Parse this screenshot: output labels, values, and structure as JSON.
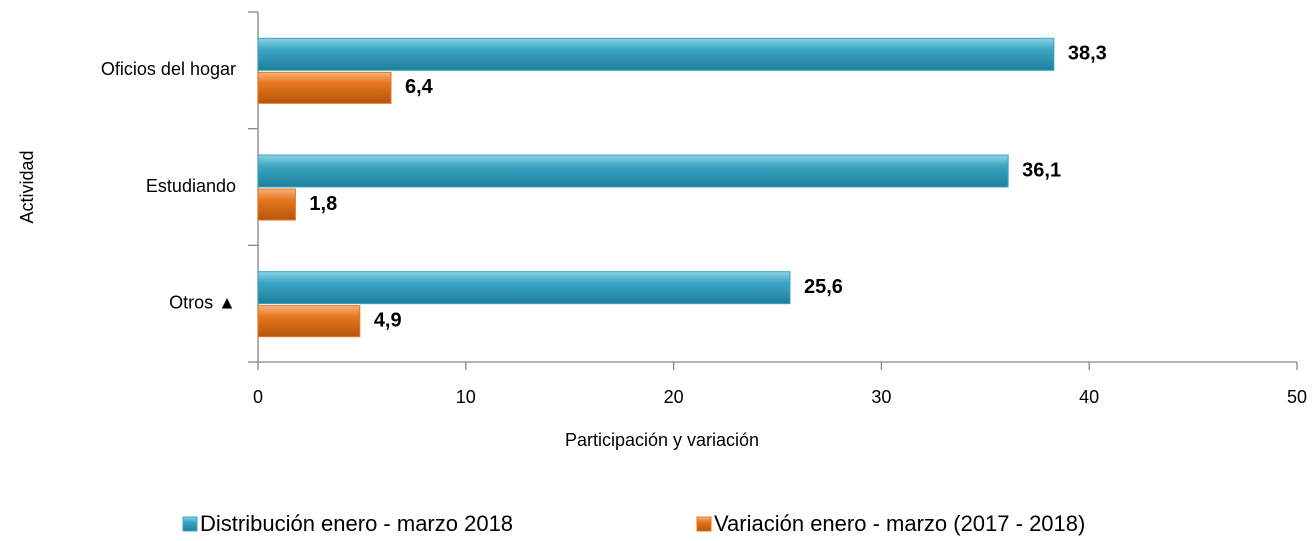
{
  "chart_data": {
    "type": "bar",
    "orientation": "horizontal",
    "x_label": "Participación y variación",
    "y_label": "Actividad",
    "categories": [
      "Oficios del hogar",
      "Estudiando",
      "Otros ▲"
    ],
    "series": [
      {
        "name": "Distribución enero - marzo 2018",
        "color": "#3aa5c3",
        "label_color": "#243f60",
        "values": [
          38.3,
          36.1,
          25.6
        ],
        "value_labels": [
          "38,3",
          "36,1",
          "25,6"
        ]
      },
      {
        "name": "Variación enero - marzo (2017 - 2018)",
        "color": "#e8761f",
        "label_color": "#e36c09",
        "values": [
          6.4,
          1.8,
          4.9
        ],
        "value_labels": [
          "6,4",
          "1,8",
          "4,9"
        ]
      }
    ],
    "xlim": [
      0,
      50
    ],
    "xticks": [
      0,
      10,
      20,
      30,
      40,
      50
    ],
    "grid": false,
    "legend": "bottom"
  }
}
